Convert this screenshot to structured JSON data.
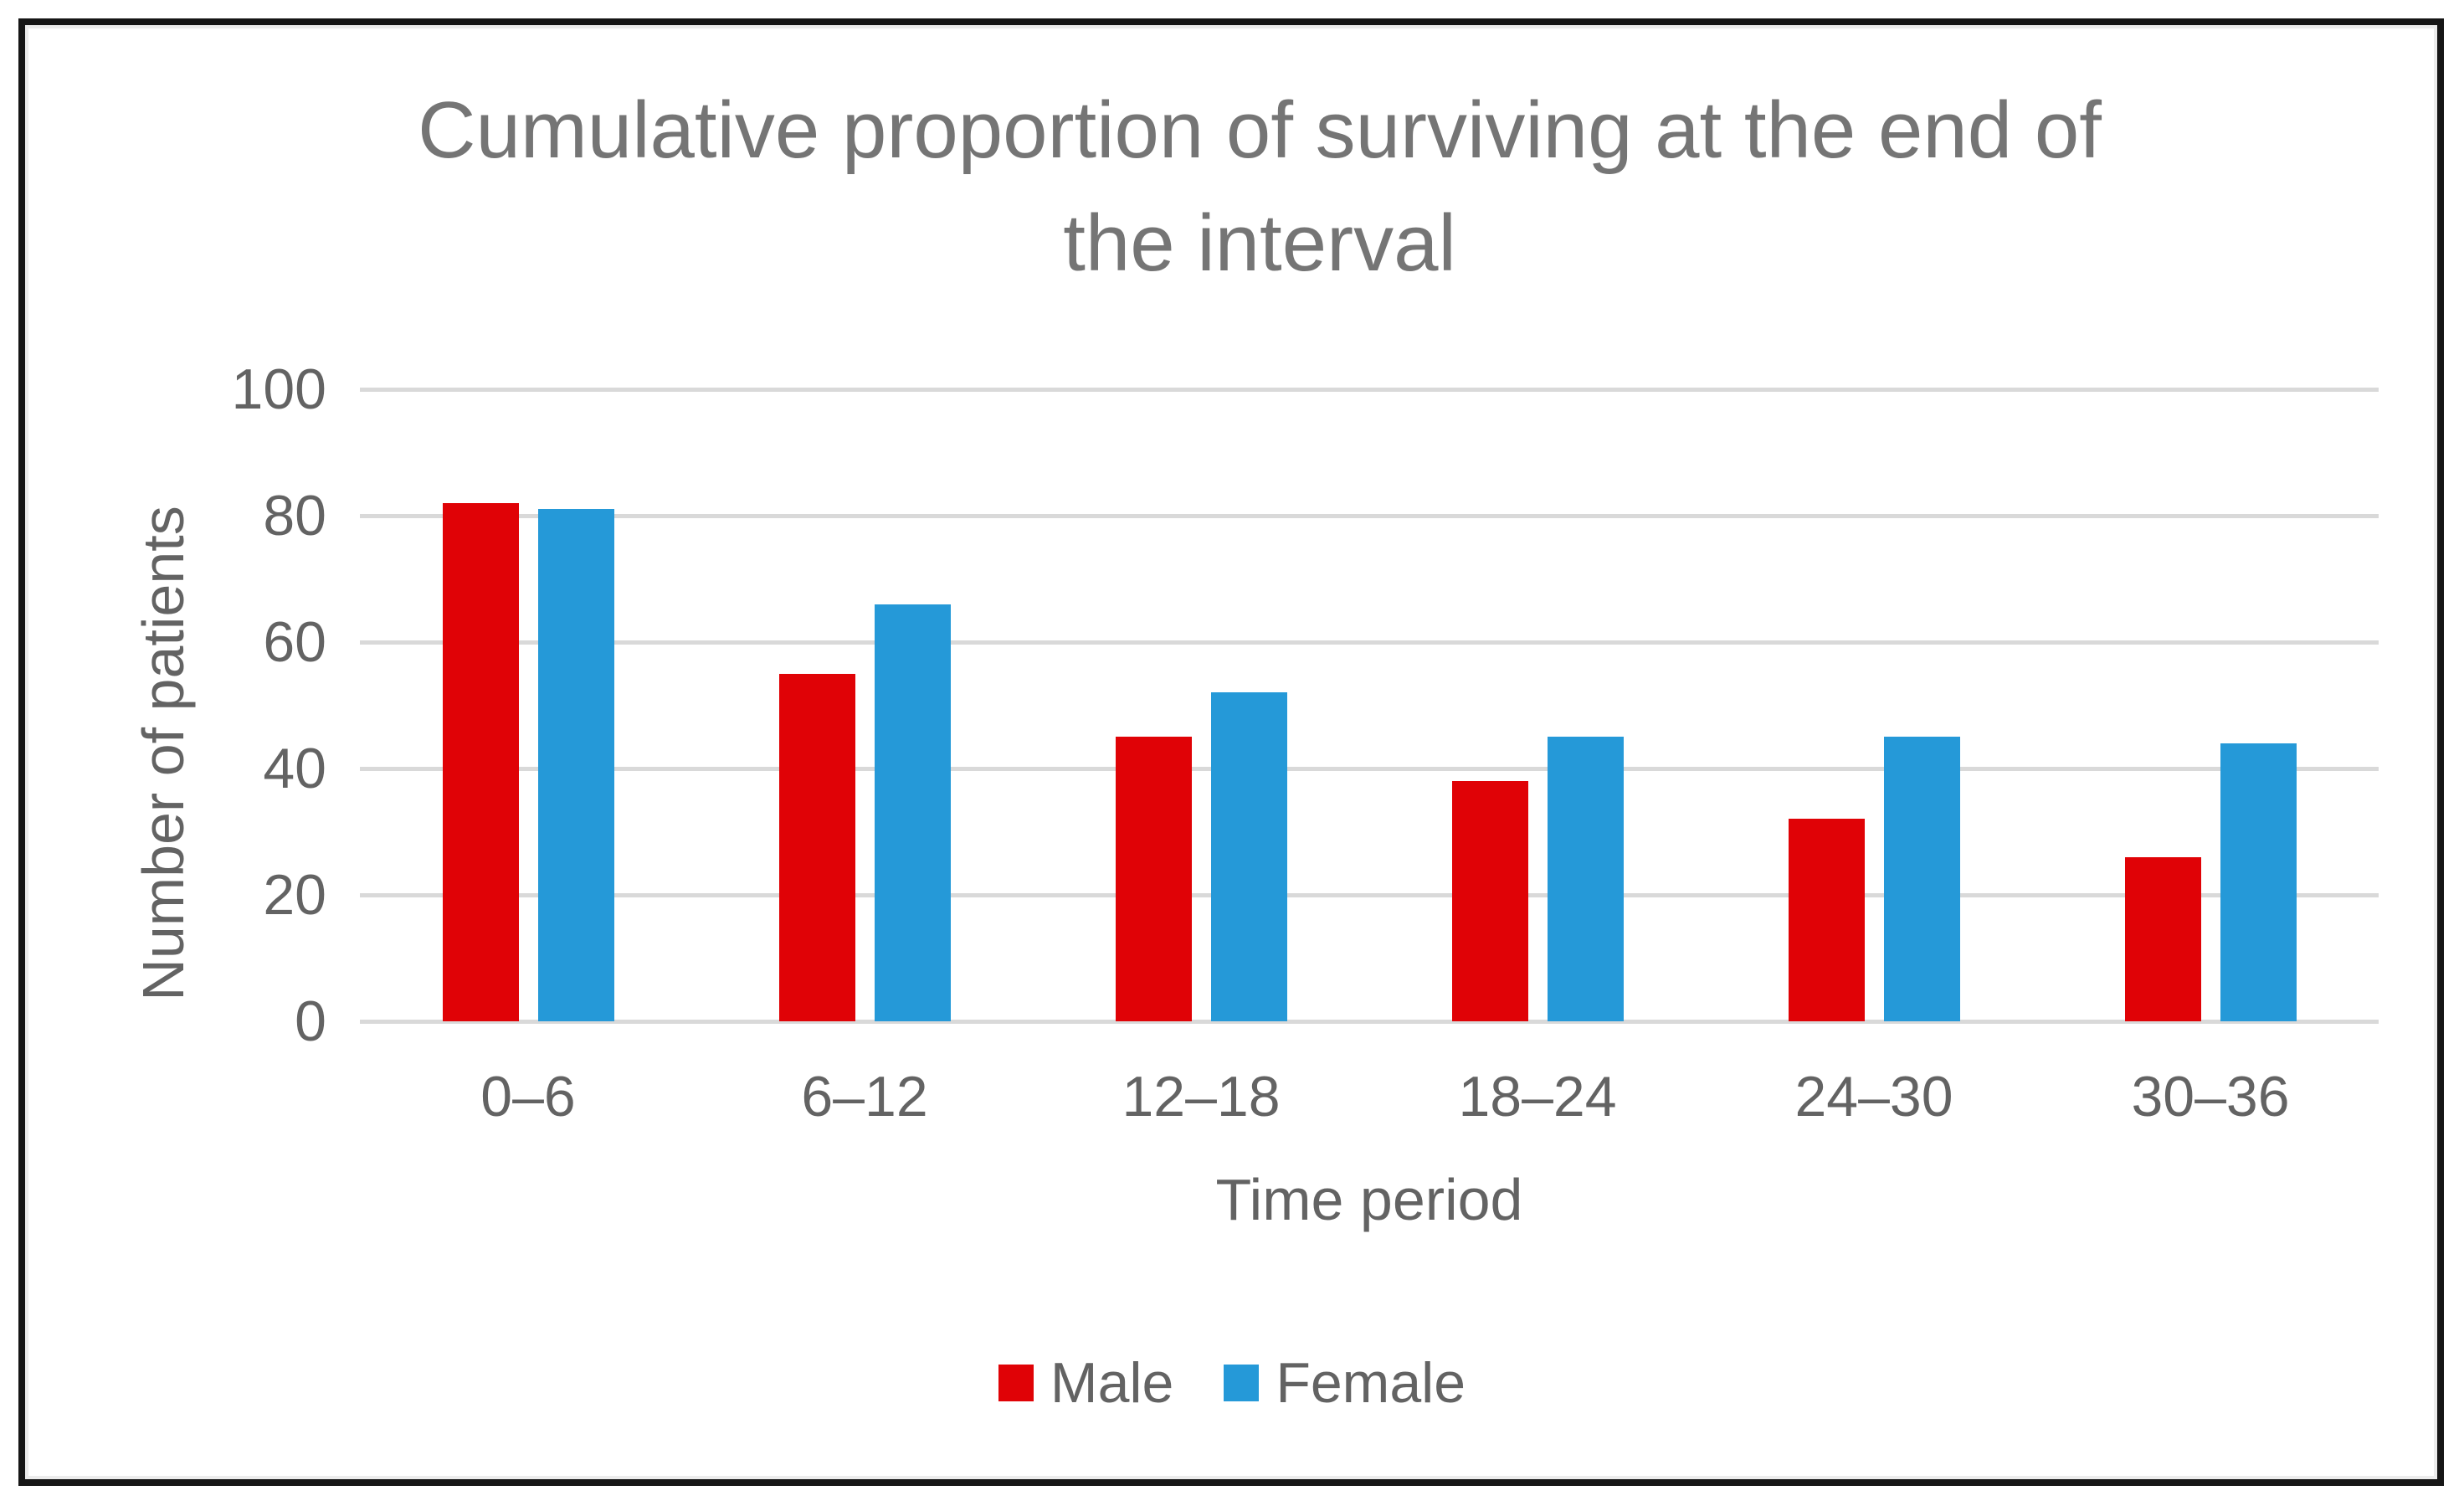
{
  "chart_data": {
    "type": "bar",
    "title": "Cumulative proportion of surviving at the end of the interval",
    "title_lines": [
      "Cumulative proportion of surviving at the end of",
      "the interval"
    ],
    "categories": [
      "0–6",
      "6–12",
      "12–18",
      "18–24",
      "24–30",
      "30–36"
    ],
    "series": [
      {
        "name": "Male",
        "color": "#e00206",
        "values": [
          82,
          55,
          45,
          38,
          32,
          26
        ]
      },
      {
        "name": "Female",
        "color": "#2599d8",
        "values": [
          81,
          66,
          52,
          45,
          45,
          44
        ]
      }
    ],
    "xlabel": "Time period",
    "ylabel": "Number of patients",
    "ylim": [
      0,
      100
    ],
    "yticks": [
      0,
      20,
      40,
      60,
      80,
      100
    ],
    "grid": "horizontal",
    "legend_position": "bottom",
    "colors": {
      "male": "#e00206",
      "female": "#2599d8",
      "gridline": "#d9d9d9",
      "title_text": "#757575",
      "axis_text": "#636363",
      "frame": "#161616"
    }
  }
}
